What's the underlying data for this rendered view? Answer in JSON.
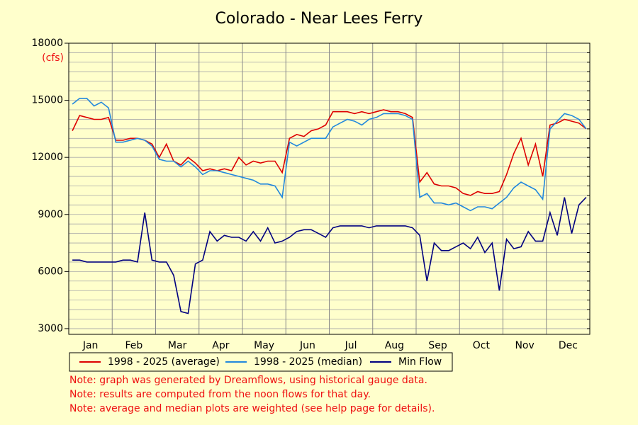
{
  "chart_data": {
    "type": "line",
    "title": "Colorado - Near Lees Ferry",
    "y_unit": "(cfs)",
    "month_labels": [
      "Jan",
      "Feb",
      "Mar",
      "Apr",
      "May",
      "Jun",
      "Jul",
      "Aug",
      "Sep",
      "Oct",
      "Nov",
      "Dec"
    ],
    "ylim": [
      2700,
      18000
    ],
    "yticks": [
      3000,
      6000,
      9000,
      12000,
      15000,
      18000
    ],
    "ygrid": [
      3000,
      3500,
      4000,
      4500,
      5000,
      5500,
      6000,
      6500,
      7000,
      7500,
      8000,
      8500,
      9000,
      9500,
      10000,
      10500,
      11000,
      11500,
      12000,
      12500,
      13000,
      13500,
      14000,
      14500,
      15000,
      15500,
      16000,
      16500,
      17000,
      17500,
      18000
    ],
    "grid": true,
    "series": [
      {
        "name": "1998 - 2025 (average)",
        "color": "#dd0000",
        "values": [
          13400,
          14200,
          14100,
          14000,
          14000,
          14100,
          12900,
          12900,
          13000,
          13000,
          12900,
          12700,
          12000,
          12700,
          11800,
          11600,
          12000,
          11700,
          11300,
          11400,
          11300,
          11400,
          11300,
          12000,
          11600,
          11800,
          11700,
          11800,
          11800,
          11200,
          13000,
          13200,
          13100,
          13400,
          13500,
          13700,
          14400,
          14400,
          14400,
          14300,
          14400,
          14300,
          14400,
          14500,
          14400,
          14400,
          14300,
          14100,
          10700,
          11200,
          10600,
          10500,
          10500,
          10400,
          10100,
          10000,
          10200,
          10100,
          10100,
          10200,
          11100,
          12200,
          13000,
          11600,
          12700,
          11000,
          13700,
          13800,
          14000,
          13900,
          13800,
          13500
        ]
      },
      {
        "name": "1998 - 2025 (median)",
        "color": "#2288dd",
        "values": [
          14800,
          15100,
          15100,
          14700,
          14900,
          14600,
          12800,
          12800,
          12900,
          13000,
          12900,
          12600,
          11900,
          11800,
          11800,
          11500,
          11800,
          11500,
          11100,
          11300,
          11300,
          11200,
          11100,
          11000,
          10900,
          10800,
          10600,
          10600,
          10500,
          9900,
          12800,
          12600,
          12800,
          13000,
          13000,
          13000,
          13600,
          13800,
          14000,
          13900,
          13700,
          14000,
          14100,
          14300,
          14300,
          14300,
          14200,
          14000,
          9900,
          10100,
          9600,
          9600,
          9500,
          9600,
          9400,
          9200,
          9400,
          9400,
          9300,
          9600,
          9900,
          10400,
          10700,
          10500,
          10300,
          9800,
          13500,
          13900,
          14300,
          14200,
          14000,
          13500
        ]
      },
      {
        "name": "Min Flow",
        "color": "#000080",
        "values": [
          6600,
          6600,
          6500,
          6500,
          6500,
          6500,
          6500,
          6600,
          6600,
          6500,
          9100,
          6600,
          6500,
          6500,
          5800,
          3900,
          3800,
          6400,
          6600,
          8100,
          7600,
          7900,
          7800,
          7800,
          7600,
          8100,
          7600,
          8300,
          7500,
          7600,
          7800,
          8100,
          8200,
          8200,
          8000,
          7800,
          8300,
          8400,
          8400,
          8400,
          8400,
          8300,
          8400,
          8400,
          8400,
          8400,
          8400,
          8300,
          7900,
          5500,
          7500,
          7100,
          7100,
          7300,
          7500,
          7200,
          7800,
          7000,
          7500,
          5000,
          7700,
          7200,
          7300,
          8100,
          7600,
          7600,
          9100,
          7900,
          9900,
          8000,
          9500,
          9900
        ]
      }
    ],
    "notes": [
      "Note: graph was generated by Dreamflows, using historical gauge data.",
      "Note: results are computed from the noon flows for that day.",
      "Note: average and median plots are weighted (see help page for details)."
    ]
  }
}
